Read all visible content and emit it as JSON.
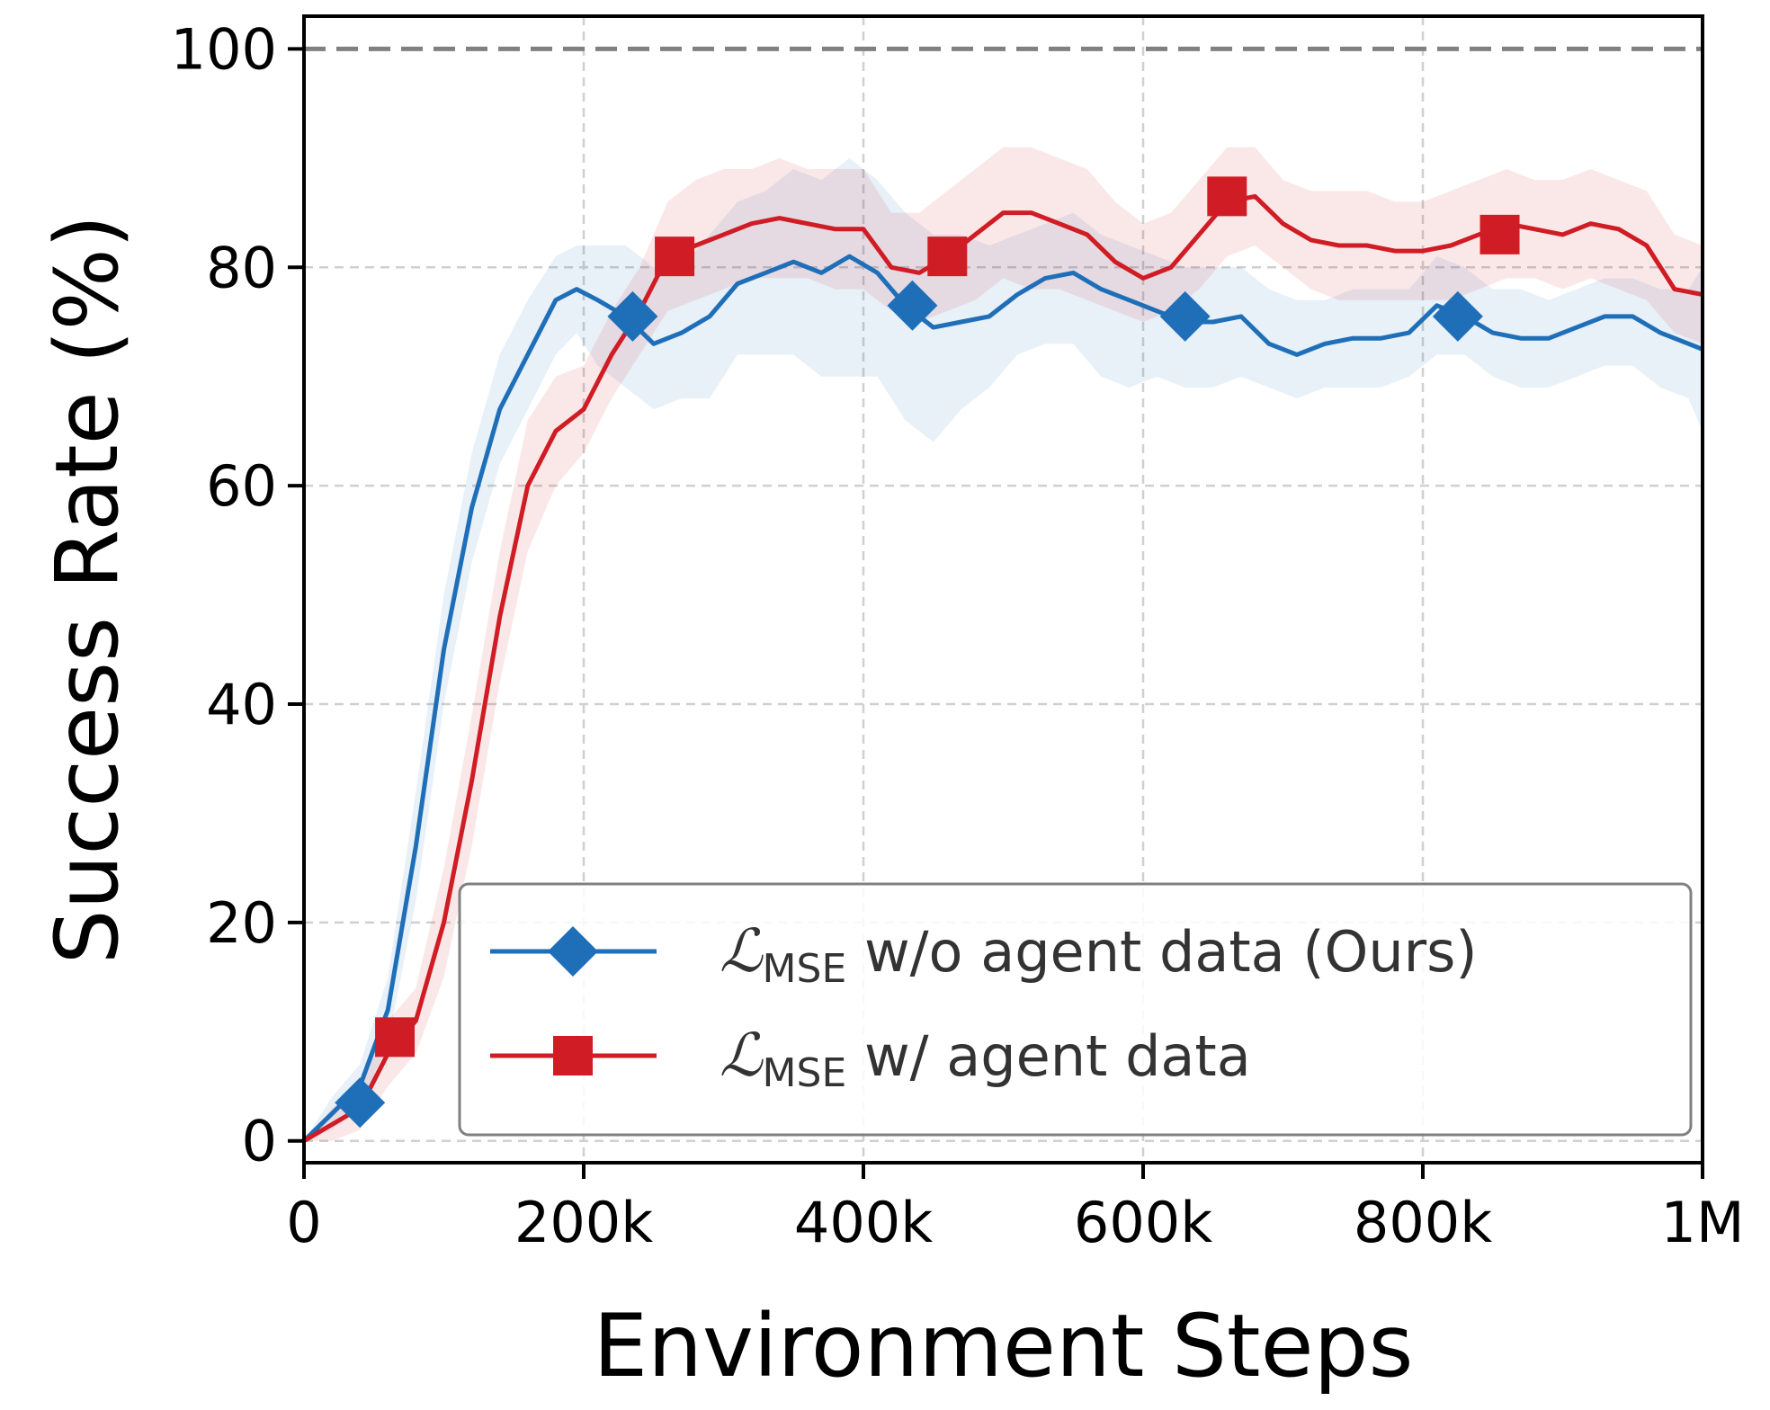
{
  "chart_data": {
    "type": "line",
    "xlabel": "Environment Steps",
    "ylabel": "Success Rate (%)",
    "xlim": [
      0,
      1000000
    ],
    "ylim": [
      -2,
      103
    ],
    "grid": true,
    "reference_line": {
      "y": 100,
      "style": "dashed",
      "color": "#808080"
    },
    "x_ticks": [
      {
        "value": 0,
        "label": "0"
      },
      {
        "value": 200000,
        "label": "200k"
      },
      {
        "value": 400000,
        "label": "400k"
      },
      {
        "value": 600000,
        "label": "600k"
      },
      {
        "value": 800000,
        "label": "800k"
      },
      {
        "value": 1000000,
        "label": "1M"
      }
    ],
    "y_ticks": [
      {
        "value": 0,
        "label": "0"
      },
      {
        "value": 20,
        "label": "20"
      },
      {
        "value": 40,
        "label": "40"
      },
      {
        "value": 60,
        "label": "60"
      },
      {
        "value": 80,
        "label": "80"
      },
      {
        "value": 100,
        "label": "100"
      }
    ],
    "legend_position": "lower-right",
    "series": [
      {
        "name_symbol": "ℒ",
        "name_subscript": "MSE",
        "name_text": " w/o agent data (Ours)",
        "color": "#1f6fb8",
        "marker": "diamond",
        "x": [
          0,
          20000,
          40000,
          60000,
          80000,
          100000,
          120000,
          140000,
          160000,
          180000,
          195000,
          210000,
          230000,
          250000,
          270000,
          290000,
          310000,
          330000,
          350000,
          370000,
          390000,
          410000,
          430000,
          450000,
          470000,
          490000,
          510000,
          530000,
          550000,
          570000,
          590000,
          610000,
          630000,
          650000,
          670000,
          690000,
          710000,
          730000,
          750000,
          770000,
          790000,
          810000,
          830000,
          850000,
          870000,
          890000,
          910000,
          930000,
          950000,
          970000,
          990000,
          1000000
        ],
        "y": [
          0,
          2.5,
          5,
          12,
          27,
          45,
          58,
          67,
          72,
          77,
          78,
          77,
          75.5,
          73,
          74,
          75.5,
          78.5,
          79.5,
          80.5,
          79.5,
          81,
          79.5,
          76.5,
          74.5,
          75,
          75.5,
          77.5,
          79,
          79.5,
          78,
          77,
          76,
          75,
          75,
          75.5,
          73,
          72,
          73,
          73.5,
          73.5,
          74,
          76.5,
          75.5,
          74,
          73.5,
          73.5,
          74.5,
          75.5,
          75.5,
          74,
          73,
          72.5
        ],
        "lower": [
          0,
          1,
          3,
          9,
          22,
          40,
          53,
          62,
          67,
          72,
          74,
          71,
          69,
          67,
          68,
          68,
          72,
          72,
          72,
          70,
          70,
          70,
          66,
          64,
          67,
          69,
          72,
          73,
          73,
          70,
          69,
          70,
          69,
          69,
          70,
          69,
          68,
          69,
          69,
          69,
          70,
          72,
          72,
          70,
          69,
          69,
          70,
          71,
          71,
          69,
          68,
          65
        ],
        "upper": [
          0,
          4,
          7,
          15,
          32,
          50,
          63,
          72,
          77,
          81,
          82,
          82,
          82,
          80,
          80,
          83,
          86,
          87,
          89,
          88,
          90,
          88,
          85,
          83,
          83,
          82,
          83,
          84,
          85,
          83,
          82,
          81,
          80,
          80,
          80,
          78,
          77,
          77,
          78,
          78,
          78,
          81,
          80,
          78,
          78,
          77,
          78,
          79,
          79,
          78,
          78,
          80
        ],
        "marker_x": [
          40000,
          235000,
          435000,
          630000,
          825000
        ],
        "marker_y": [
          3.5,
          75.5,
          76.5,
          75.5,
          75.5
        ]
      },
      {
        "name_symbol": "ℒ",
        "name_subscript": "MSE",
        "name_text": " w/ agent data",
        "color": "#d01c24",
        "marker": "square",
        "x": [
          0,
          20000,
          40000,
          60000,
          80000,
          100000,
          120000,
          140000,
          160000,
          180000,
          200000,
          220000,
          240000,
          260000,
          280000,
          300000,
          320000,
          340000,
          360000,
          380000,
          400000,
          420000,
          440000,
          460000,
          480000,
          500000,
          520000,
          540000,
          560000,
          580000,
          600000,
          620000,
          640000,
          660000,
          680000,
          700000,
          720000,
          740000,
          760000,
          780000,
          800000,
          820000,
          840000,
          860000,
          880000,
          900000,
          920000,
          940000,
          960000,
          980000,
          1000000
        ],
        "y": [
          0,
          1.5,
          3,
          8,
          11,
          20,
          33,
          48,
          60,
          65,
          67,
          72,
          76,
          81,
          82,
          83,
          84,
          84.5,
          84,
          83.5,
          83.5,
          80,
          79.5,
          81,
          83,
          85,
          85,
          84,
          83,
          80.5,
          79,
          80,
          83,
          86,
          86.5,
          84,
          82.5,
          82,
          82,
          81.5,
          81.5,
          82,
          83,
          84,
          83.5,
          83,
          84,
          83.5,
          82,
          78,
          77.5
        ],
        "lower": [
          0,
          0,
          1,
          5,
          8,
          15,
          27,
          42,
          54,
          60,
          63,
          68,
          72,
          76,
          77,
          78,
          79,
          79,
          79,
          78,
          78,
          76,
          75,
          76,
          77,
          79,
          78,
          78,
          77,
          76,
          75,
          76,
          78,
          81,
          82,
          80,
          78,
          77,
          77,
          77,
          77,
          77,
          78,
          79,
          79,
          78,
          79,
          78,
          77,
          74,
          73
        ],
        "upper": [
          0,
          3,
          5,
          11,
          14,
          25,
          39,
          54,
          66,
          70,
          71,
          76,
          80,
          86,
          88,
          89,
          89,
          90,
          89,
          89,
          89,
          85,
          85,
          87,
          89,
          91,
          91,
          90,
          89,
          86,
          84,
          85,
          88,
          91,
          91,
          88,
          87,
          87,
          87,
          86,
          86,
          87,
          88,
          89,
          88,
          88,
          89,
          88,
          87,
          83,
          82
        ],
        "marker_x": [
          65000,
          265000,
          460000,
          660000,
          855000
        ],
        "marker_y": [
          9.5,
          81,
          81,
          86.5,
          83
        ]
      }
    ]
  }
}
